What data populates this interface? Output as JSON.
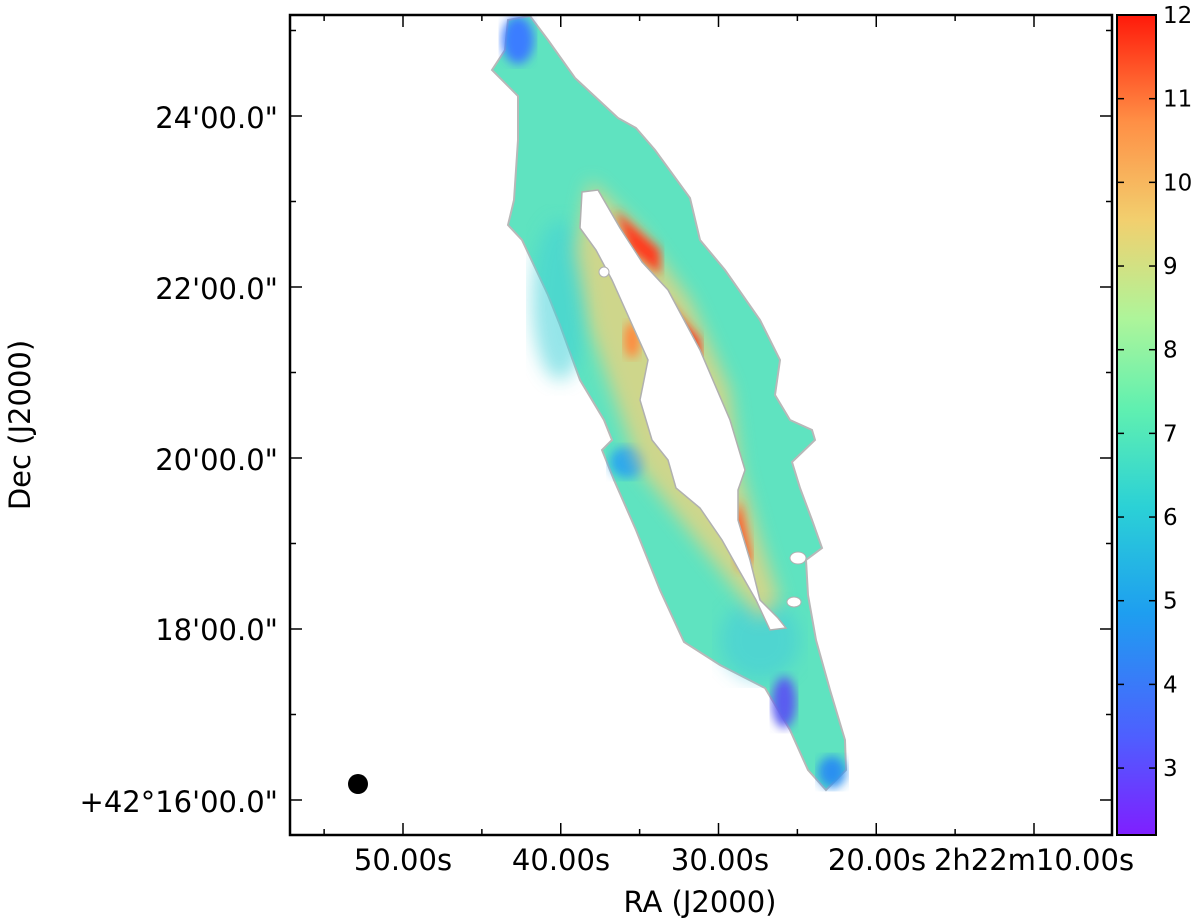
{
  "chart_data": {
    "type": "heatmap",
    "title": "",
    "xlabel": "RA (J2000)",
    "ylabel": "Dec (J2000)",
    "x_tick_labels": [
      "50.00s",
      "40.00s",
      "30.00s",
      "20.00s",
      "2h22m10.00s"
    ],
    "y_tick_labels": [
      "+42°16'00.0\"",
      "18'00.0\"",
      "20'00.0\"",
      "22'00.0\"",
      "24'00.0\""
    ],
    "colorbar": {
      "colormap": "rainbow",
      "range": [
        2.2,
        12
      ],
      "tick_values": [
        3,
        4,
        5,
        6,
        7,
        8,
        9,
        10,
        11,
        12
      ],
      "tick_labels": [
        "3",
        "4",
        "5",
        "6",
        "7",
        "8",
        "9",
        "10",
        "11",
        "12"
      ]
    },
    "grid": false,
    "beam_marker": "filled black circle, lower-left corner"
  }
}
